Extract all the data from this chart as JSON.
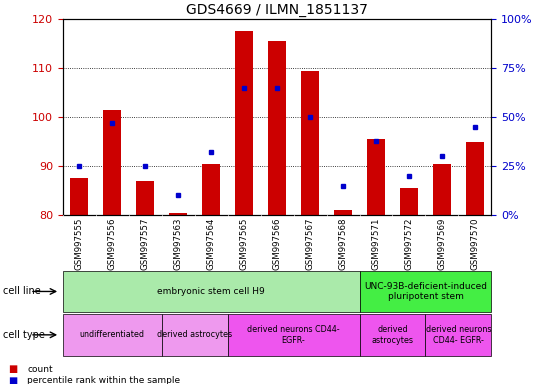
{
  "title": "GDS4669 / ILMN_1851137",
  "samples": [
    "GSM997555",
    "GSM997556",
    "GSM997557",
    "GSM997563",
    "GSM997564",
    "GSM997565",
    "GSM997566",
    "GSM997567",
    "GSM997568",
    "GSM997571",
    "GSM997572",
    "GSM997569",
    "GSM997570"
  ],
  "count_values": [
    87.5,
    101.5,
    87.0,
    80.5,
    90.5,
    117.5,
    115.5,
    109.5,
    81.0,
    95.5,
    85.5,
    90.5,
    95.0
  ],
  "percentile_values": [
    25,
    47,
    25,
    10,
    32,
    65,
    65,
    50,
    15,
    38,
    20,
    30,
    45
  ],
  "ylim_left": [
    80,
    120
  ],
  "ylim_right": [
    0,
    100
  ],
  "yticks_left": [
    80,
    90,
    100,
    110,
    120
  ],
  "yticks_right": [
    0,
    25,
    50,
    75,
    100
  ],
  "bar_color": "#cc0000",
  "dot_color": "#0000cc",
  "bar_bottom": 80,
  "cell_line_groups": [
    {
      "label": "embryonic stem cell H9",
      "start": 0,
      "end": 9,
      "color": "#aaeaaa"
    },
    {
      "label": "UNC-93B-deficient-induced\npluripotent stem",
      "start": 9,
      "end": 13,
      "color": "#44ee44"
    }
  ],
  "cell_type_groups": [
    {
      "label": "undifferentiated",
      "start": 0,
      "end": 3,
      "color": "#ee99ee"
    },
    {
      "label": "derived astrocytes",
      "start": 3,
      "end": 5,
      "color": "#ee99ee"
    },
    {
      "label": "derived neurons CD44-\nEGFR-",
      "start": 5,
      "end": 9,
      "color": "#ee55ee"
    },
    {
      "label": "derived\nastrocytes",
      "start": 9,
      "end": 11,
      "color": "#ee55ee"
    },
    {
      "label": "derived neurons\nCD44- EGFR-",
      "start": 11,
      "end": 13,
      "color": "#ee55ee"
    }
  ],
  "tick_color_left": "#cc0000",
  "tick_color_right": "#0000cc",
  "legend_count_color": "#cc0000",
  "legend_dot_color": "#0000cc",
  "grid_yticks": [
    90,
    100,
    110
  ],
  "xtick_bg_color": "#cccccc"
}
